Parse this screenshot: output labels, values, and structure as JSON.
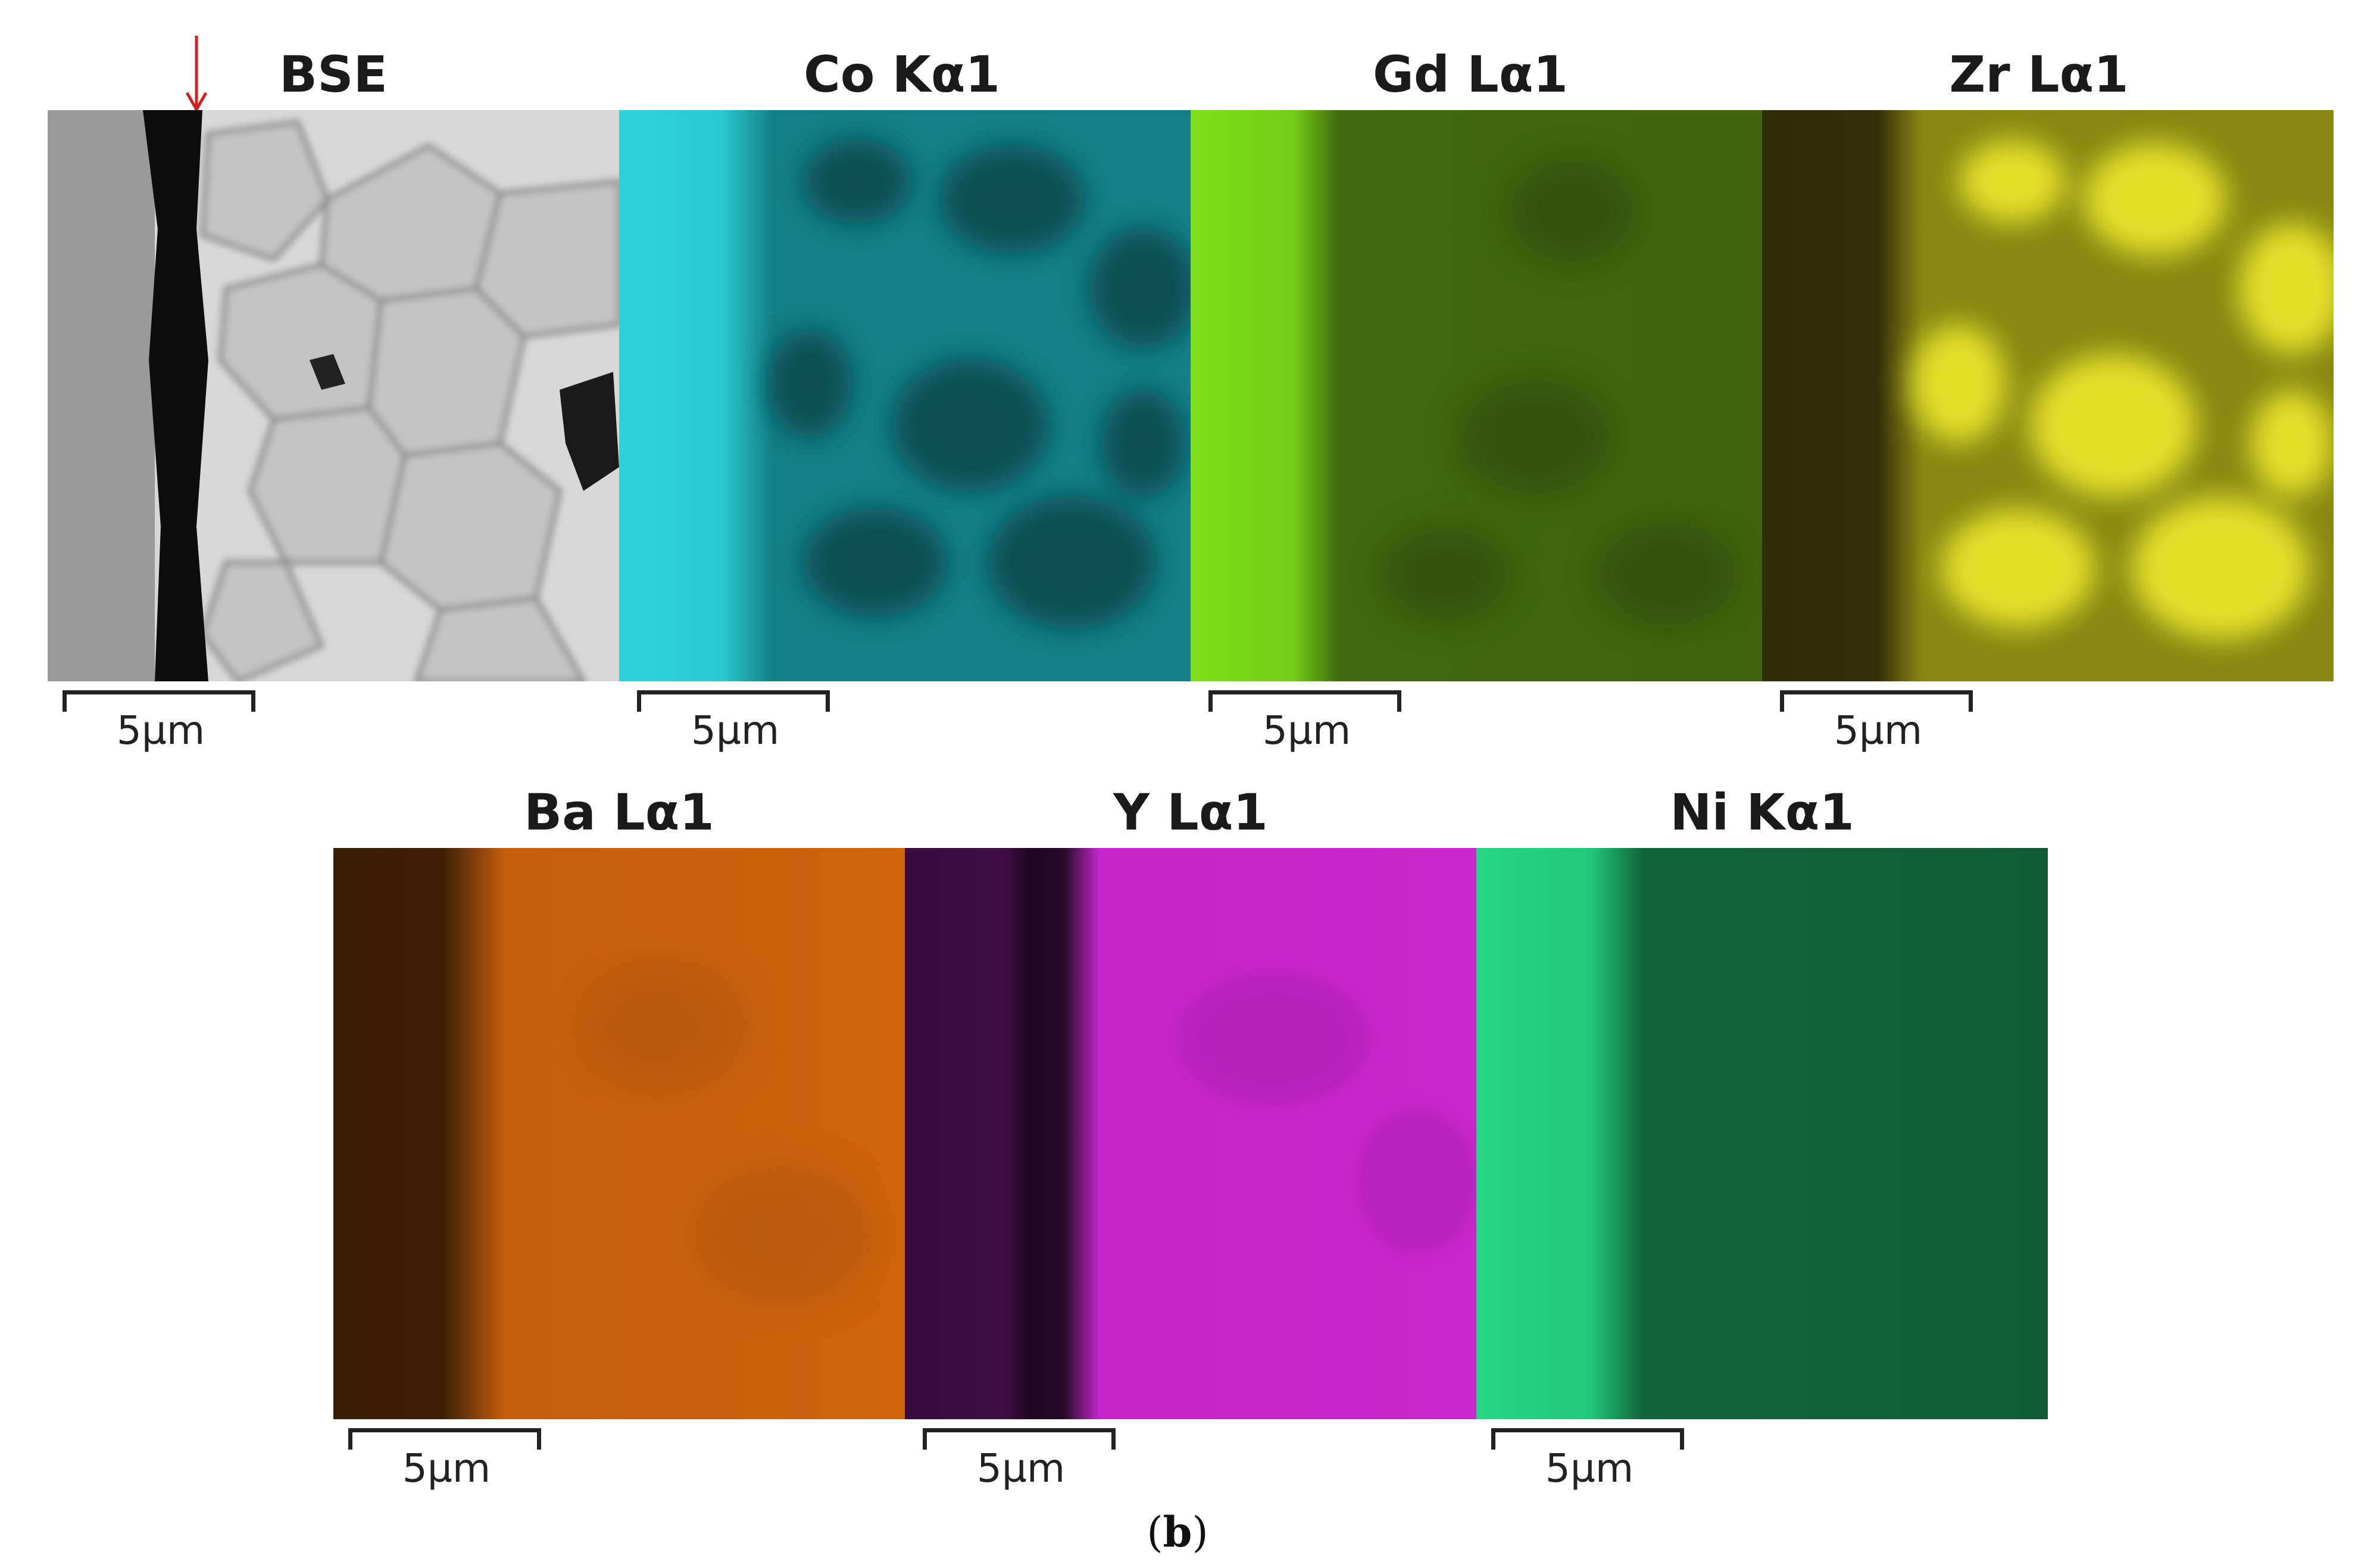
{
  "figure": {
    "caption_open": "(",
    "caption_letter": "b",
    "caption_close": ")"
  },
  "panels": [
    {
      "title": "BSE",
      "scale_label": "5µm",
      "map": "bse"
    },
    {
      "title": "Co Kα1",
      "scale_label": "5µm",
      "map": "co",
      "colors": {
        "bright": "#2ed3dc",
        "dim": "#0b5a60"
      }
    },
    {
      "title": "Gd Lα1",
      "scale_label": "5µm",
      "map": "gd",
      "colors": {
        "bright": "#7fe01a",
        "dim": "#2f4f0a"
      }
    },
    {
      "title": "Zr Lα1",
      "scale_label": "5µm",
      "map": "zr",
      "colors": {
        "bright": "#e3e02a",
        "dim": "#2f2c08"
      }
    },
    {
      "title": "Ba Lα1",
      "scale_label": "5µm",
      "map": "ba",
      "colors": {
        "bright": "#d9670d",
        "dim": "#3a1e05"
      }
    },
    {
      "title": "Y Lα1",
      "scale_label": "5µm",
      "map": "y",
      "colors": {
        "bright": "#d12ad6",
        "dim": "#3a0b3d"
      }
    },
    {
      "title": "Ni Kα1",
      "scale_label": "5µm",
      "map": "ni",
      "colors": {
        "bright": "#27d683",
        "dim": "#0f5a32"
      }
    }
  ],
  "annotation": {
    "arrow_color": "#d42020",
    "arrow": "down-arrow-icon"
  }
}
